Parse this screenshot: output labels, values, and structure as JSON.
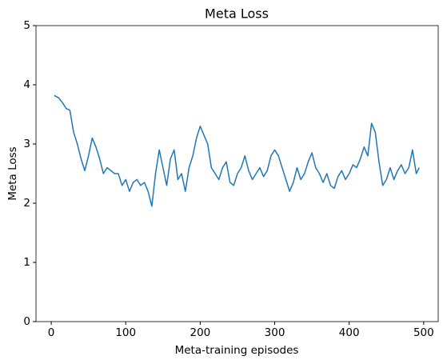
{
  "chart_data": {
    "type": "line",
    "title": "Meta Loss",
    "x_label": "Meta-training episodes",
    "y_label": "Meta Loss",
    "x": [
      4,
      10,
      15,
      20,
      25,
      30,
      35,
      40,
      45,
      50,
      55,
      60,
      65,
      70,
      75,
      80,
      85,
      90,
      95,
      100,
      105,
      110,
      115,
      120,
      125,
      130,
      135,
      140,
      145,
      150,
      155,
      160,
      165,
      170,
      175,
      180,
      185,
      190,
      195,
      200,
      205,
      210,
      215,
      220,
      225,
      230,
      235,
      240,
      245,
      250,
      255,
      260,
      265,
      270,
      275,
      280,
      285,
      290,
      295,
      300,
      305,
      310,
      315,
      320,
      325,
      330,
      335,
      340,
      345,
      350,
      355,
      360,
      365,
      370,
      375,
      380,
      385,
      390,
      395,
      400,
      405,
      410,
      415,
      420,
      425,
      430,
      435,
      440,
      445,
      450,
      455,
      460,
      465,
      470,
      475,
      480,
      485,
      490,
      494
    ],
    "series": [
      {
        "name": "Meta Loss",
        "color": "#1f77b4",
        "values": [
          3.82,
          3.78,
          3.7,
          3.6,
          3.57,
          3.2,
          3.0,
          2.75,
          2.55,
          2.8,
          3.1,
          2.95,
          2.75,
          2.5,
          2.6,
          2.55,
          2.5,
          2.5,
          2.3,
          2.4,
          2.2,
          2.35,
          2.4,
          2.3,
          2.35,
          2.2,
          1.95,
          2.5,
          2.9,
          2.6,
          2.3,
          2.75,
          2.9,
          2.4,
          2.5,
          2.2,
          2.6,
          2.8,
          3.1,
          3.3,
          3.15,
          3.0,
          2.6,
          2.5,
          2.4,
          2.6,
          2.7,
          2.35,
          2.3,
          2.5,
          2.6,
          2.8,
          2.55,
          2.4,
          2.5,
          2.6,
          2.45,
          2.55,
          2.8,
          2.9,
          2.8,
          2.6,
          2.4,
          2.2,
          2.35,
          2.6,
          2.4,
          2.5,
          2.7,
          2.85,
          2.6,
          2.5,
          2.35,
          2.5,
          2.3,
          2.25,
          2.45,
          2.55,
          2.4,
          2.5,
          2.65,
          2.6,
          2.75,
          2.95,
          2.8,
          3.35,
          3.2,
          2.7,
          2.3,
          2.4,
          2.6,
          2.4,
          2.55,
          2.65,
          2.5,
          2.6,
          2.9,
          2.5,
          2.6
        ]
      }
    ],
    "xlim": [
      -20.5,
      519.5
    ],
    "ylim": [
      0,
      5
    ],
    "xticks": [
      0,
      100,
      200,
      300,
      400,
      500
    ],
    "yticks": [
      0,
      1,
      2,
      3,
      4,
      5
    ],
    "grid": false
  }
}
